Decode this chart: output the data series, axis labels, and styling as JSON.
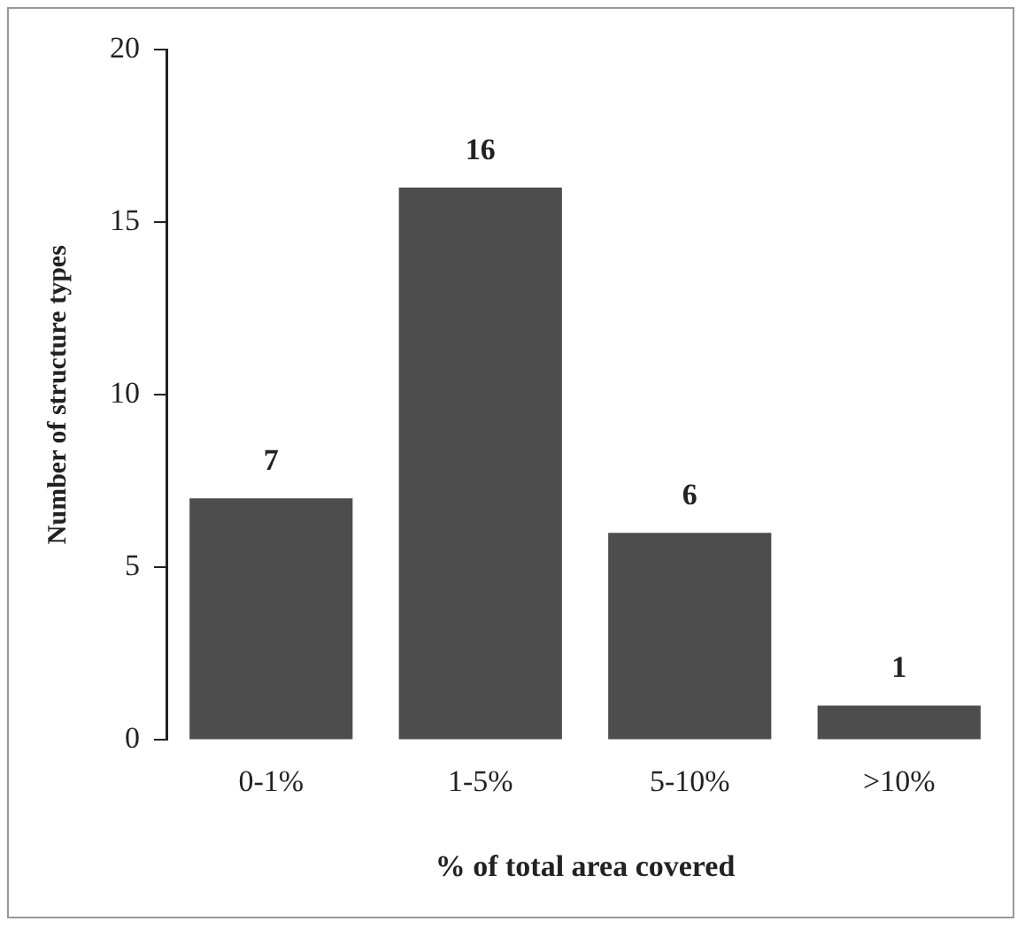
{
  "chart_data": {
    "type": "bar",
    "xlabel": "% of total area covered",
    "ylabel": "Number of structure types",
    "categories": [
      "0-1%",
      "1-5%",
      "5-10%",
      ">10%"
    ],
    "values": [
      7,
      16,
      6,
      1
    ],
    "color": "#4d4d4d",
    "ylim": [
      0,
      20
    ],
    "yticks": [
      0,
      5,
      10,
      15,
      20
    ],
    "grid": false,
    "data_labels": true
  }
}
